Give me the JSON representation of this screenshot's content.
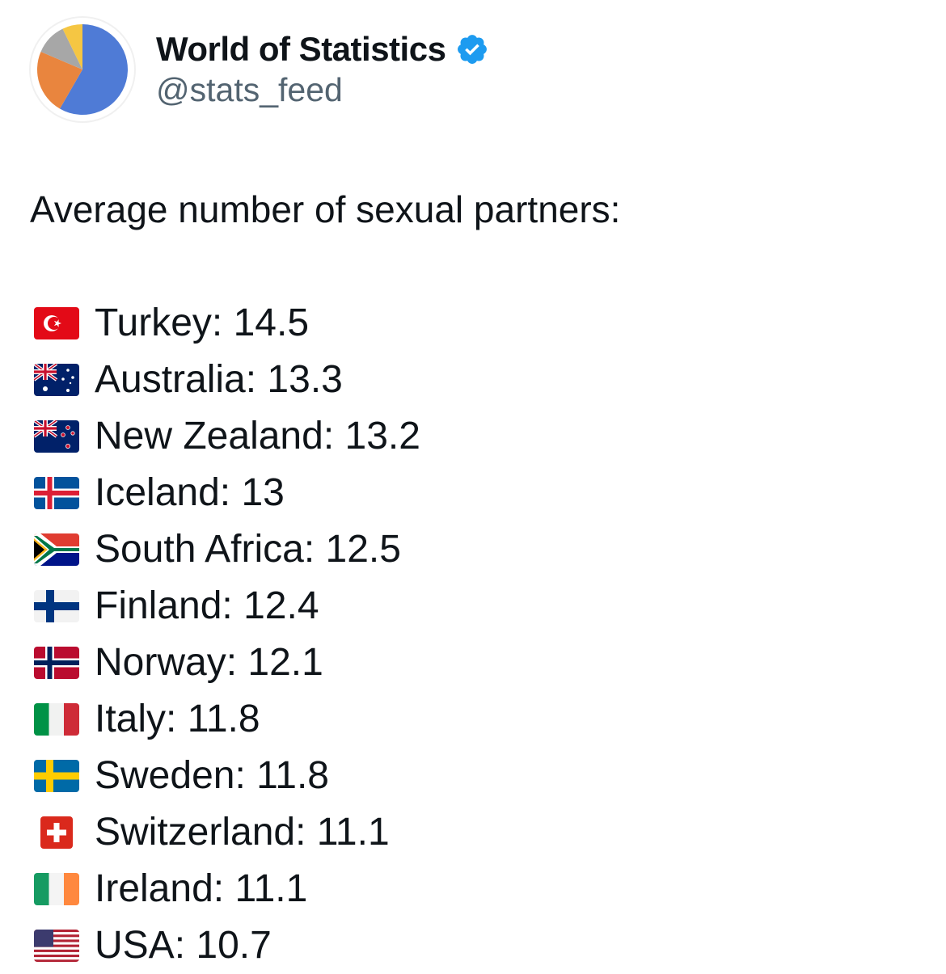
{
  "account": {
    "display_name": "World of Statistics",
    "handle": "@stats_feed",
    "verified_icon": "verified-badge-icon",
    "avatar_icon": "pie-chart-icon"
  },
  "tweet": {
    "headline": "Average number of sexual partners:",
    "rows": [
      {
        "country": "Turkey",
        "value": "14.5",
        "text": "Turkey: 14.5",
        "flag_icon": "turkey-flag-icon"
      },
      {
        "country": "Australia",
        "value": "13.3",
        "text": "Australia: 13.3",
        "flag_icon": "australia-flag-icon"
      },
      {
        "country": "New Zealand",
        "value": "13.2",
        "text": "New Zealand: 13.2",
        "flag_icon": "new-zealand-flag-icon"
      },
      {
        "country": "Iceland",
        "value": "13",
        "text": "Iceland: 13",
        "flag_icon": "iceland-flag-icon"
      },
      {
        "country": "South Africa",
        "value": "12.5",
        "text": "South Africa: 12.5",
        "flag_icon": "south-africa-flag-icon"
      },
      {
        "country": "Finland",
        "value": "12.4",
        "text": "Finland: 12.4",
        "flag_icon": "finland-flag-icon"
      },
      {
        "country": "Norway",
        "value": "12.1",
        "text": "Norway: 12.1",
        "flag_icon": "norway-flag-icon"
      },
      {
        "country": "Italy",
        "value": "11.8",
        "text": "Italy: 11.8",
        "flag_icon": "italy-flag-icon"
      },
      {
        "country": "Sweden",
        "value": "11.8",
        "text": "Sweden: 11.8",
        "flag_icon": "sweden-flag-icon"
      },
      {
        "country": "Switzerland",
        "value": "11.1",
        "text": "Switzerland: 11.1",
        "flag_icon": "switzerland-flag-icon"
      },
      {
        "country": "Ireland",
        "value": "11.1",
        "text": "Ireland: 11.1",
        "flag_icon": "ireland-flag-icon"
      },
      {
        "country": "USA",
        "value": "10.7",
        "text": "USA: 10.7",
        "flag_icon": "usa-flag-icon"
      }
    ]
  },
  "colors": {
    "verified_blue": "#1d9bf0",
    "handle_gray": "#536471",
    "text": "#0f1419"
  }
}
